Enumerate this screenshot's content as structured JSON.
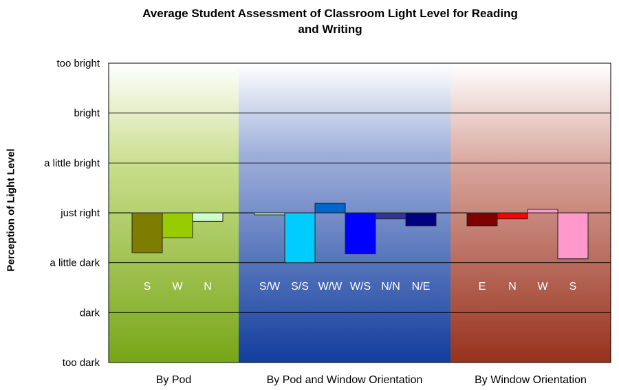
{
  "chart_data": {
    "type": "bar",
    "title_lines": [
      "Average Student Assessment of Classroom Light Level for Reading",
      "and Writing"
    ],
    "ylabel": "Perception of Light Level",
    "y_ticks": [
      "too dark",
      "dark",
      "a little dark",
      "just right",
      "a little bright",
      "bright",
      "too bright"
    ],
    "ylim": [
      -3,
      3
    ],
    "baseline": 0,
    "grid": true,
    "groups": [
      {
        "name": "By Pod",
        "bars": [
          {
            "label": "S",
            "value": -0.8,
            "color": "#7f7d00"
          },
          {
            "label": "W",
            "value": -0.5,
            "color": "#99cc00"
          },
          {
            "label": "N",
            "value": -0.17,
            "color": "#ccffcc"
          }
        ]
      },
      {
        "name": "By Pod and Window Orientation",
        "bars": [
          {
            "label": "S/W",
            "value": -0.04,
            "color": "#ccffcc"
          },
          {
            "label": "S/S",
            "value": -1.0,
            "color": "#00ccff"
          },
          {
            "label": "W/W",
            "value": 0.19,
            "color": "#0066cc"
          },
          {
            "label": "W/S",
            "value": -0.82,
            "color": "#0000ff"
          },
          {
            "label": "N/N",
            "value": -0.12,
            "color": "#333399"
          },
          {
            "label": "N/E",
            "value": -0.26,
            "color": "#000080"
          }
        ]
      },
      {
        "name": "By Window Orientation",
        "bars": [
          {
            "label": "E",
            "value": -0.26,
            "color": "#800000"
          },
          {
            "label": "N",
            "value": -0.12,
            "color": "#ff0000"
          },
          {
            "label": "W",
            "value": 0.07,
            "color": "#ff99cc"
          },
          {
            "label": "S",
            "value": -0.92,
            "color": "#ff99cc"
          }
        ]
      }
    ]
  }
}
